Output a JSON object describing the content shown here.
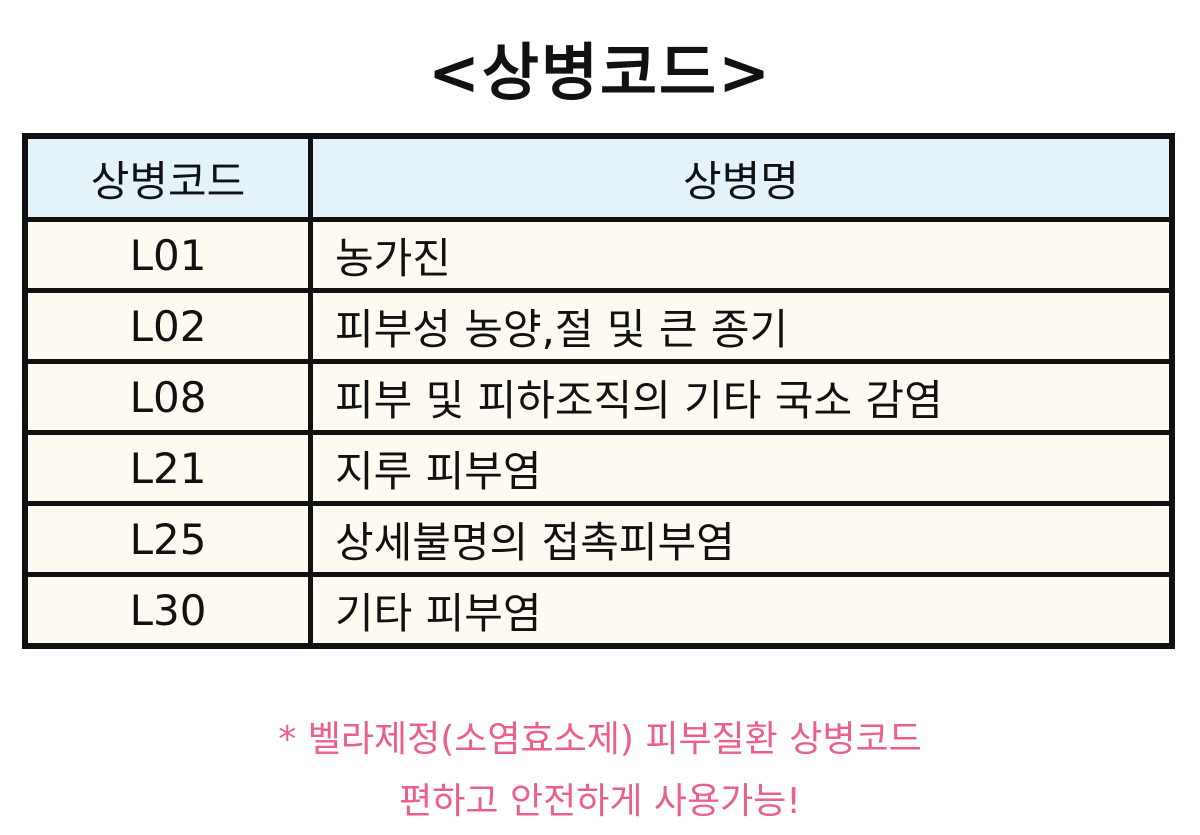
{
  "title": "<상병코드>",
  "table": {
    "headers": [
      "상병코드",
      "상병명"
    ],
    "rows": [
      {
        "code": "L01",
        "name": "농가진"
      },
      {
        "code": "L02",
        "name": "피부성 농양,절 및 큰 종기"
      },
      {
        "code": "L08",
        "name": "피부 및 피하조직의 기타 국소 감염"
      },
      {
        "code": "L21",
        "name": "지루 피부염"
      },
      {
        "code": "L25",
        "name": "상세불명의 접촉피부염"
      },
      {
        "code": "L30",
        "name": "기타 피부염"
      }
    ]
  },
  "notes": [
    "* 벨라제정(소염효소제) 피부질환 상병코드",
    "편하고 안전하게 사용가능!"
  ],
  "colors": {
    "header_bg": "#e4f3fa",
    "row_bg": "#fdfaf1",
    "note": "#ec5f86"
  }
}
